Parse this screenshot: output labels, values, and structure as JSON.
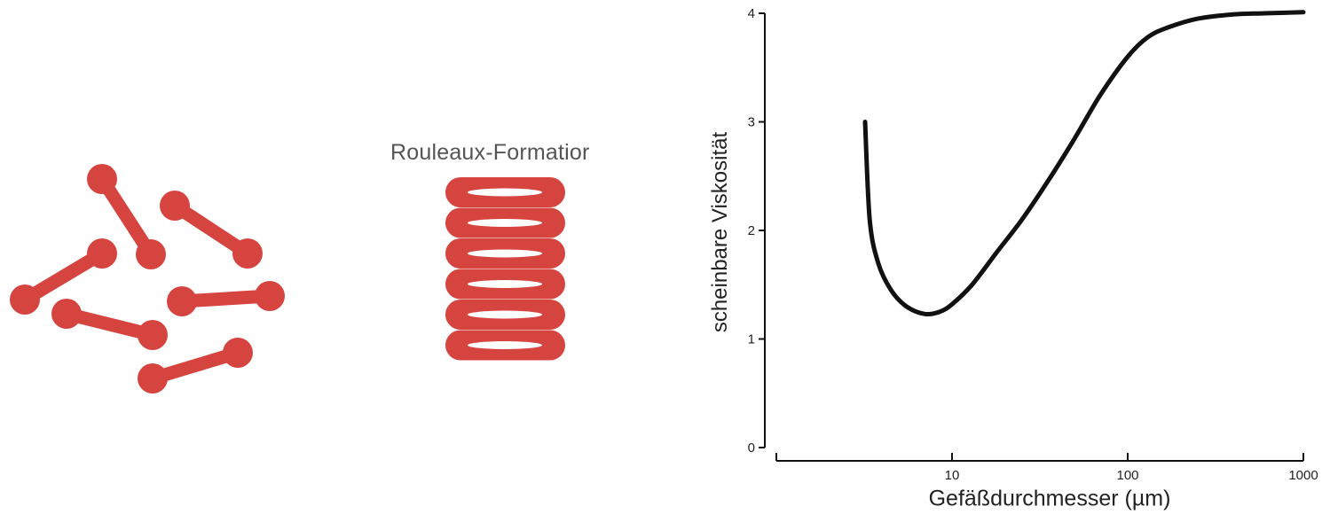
{
  "rouleaux_caption": "Rouleaux-Formatior",
  "colors": {
    "cells": "#d6443f",
    "curve": "#111111",
    "axis": "#111111"
  },
  "chart_data": {
    "type": "line",
    "title": "",
    "xlabel": "Gefäßdurchmesser (µm)",
    "ylabel": "scheinbare Viskosität",
    "x_scale": "log",
    "xlim": [
      1,
      1000
    ],
    "ylim": [
      0,
      4
    ],
    "x_ticks": [
      10,
      100,
      1000
    ],
    "x_tick_labels": [
      "10",
      "100",
      "1000"
    ],
    "y_ticks": [
      0,
      1,
      2,
      3,
      4
    ],
    "y_tick_labels": [
      "0",
      "1",
      "2",
      "3",
      "4"
    ],
    "grid": false,
    "series": [
      {
        "x": [
          3.2,
          3.4,
          3.8,
          4.5,
          5.5,
          7,
          8.5,
          10,
          13,
          18,
          25,
          35,
          50,
          70,
          100,
          130,
          170,
          250,
          400,
          600,
          1000
        ],
        "y": [
          3.0,
          2.1,
          1.7,
          1.45,
          1.3,
          1.23,
          1.25,
          1.32,
          1.5,
          1.8,
          2.1,
          2.45,
          2.85,
          3.25,
          3.6,
          3.78,
          3.87,
          3.95,
          3.99,
          4.0,
          4.01
        ]
      }
    ]
  }
}
